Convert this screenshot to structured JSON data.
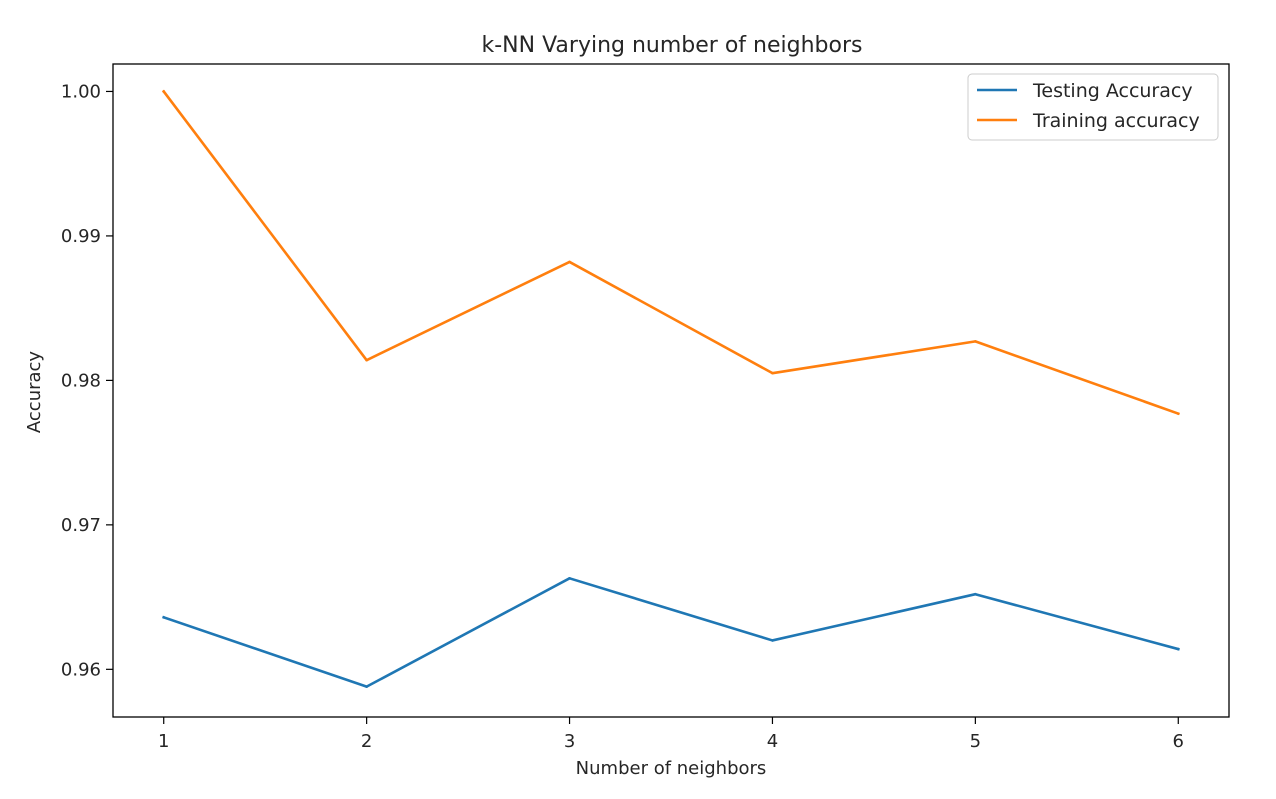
{
  "chart_data": {
    "type": "line",
    "title": "k-NN Varying number of neighbors",
    "xlabel": "Number of neighbors",
    "ylabel": "Accuracy",
    "x": [
      1,
      2,
      3,
      4,
      5,
      6
    ],
    "xticks": [
      "1",
      "2",
      "3",
      "4",
      "5",
      "6"
    ],
    "yticks": [
      "0.96",
      "0.97",
      "0.98",
      "0.99",
      "1.00"
    ],
    "xlim": [
      0.75,
      6.25
    ],
    "ylim": [
      0.9567,
      1.0019
    ],
    "grid": false,
    "legend_position": "top-right",
    "series": [
      {
        "name": "Testing Accuracy",
        "color": "#1f77b4",
        "values": [
          0.9636,
          0.9588,
          0.9663,
          0.962,
          0.9652,
          0.9614
        ]
      },
      {
        "name": "Training accuracy",
        "color": "#ff7f0e",
        "values": [
          1.0,
          0.9814,
          0.9882,
          0.9805,
          0.9827,
          0.9777
        ]
      }
    ]
  }
}
